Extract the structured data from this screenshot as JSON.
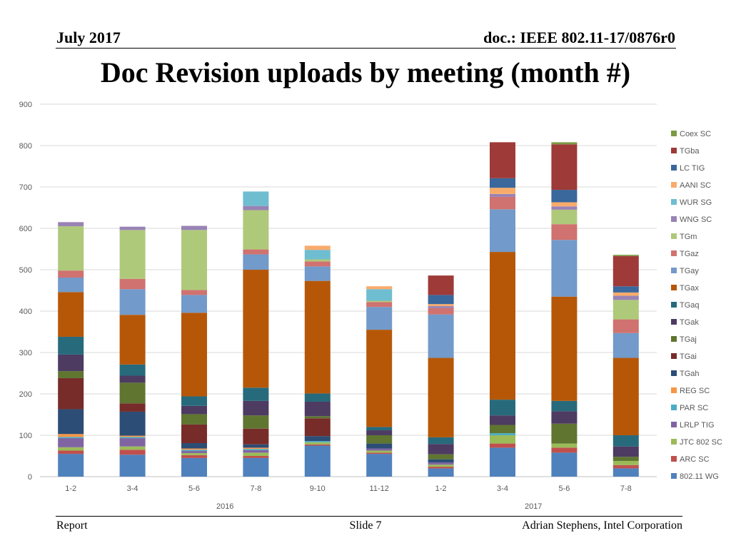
{
  "header": {
    "date": "July 2017",
    "doc_id": "doc.: IEEE 802.11-17/0876r0"
  },
  "slide_title": "Doc Revision uploads by meeting (month #)",
  "footer": {
    "left": "Report",
    "center": "Slide 7",
    "right": "Adrian Stephens, Intel Corporation"
  },
  "chart_data": {
    "type": "bar",
    "stacked": true,
    "title": "",
    "xlabel": "",
    "ylabel": "",
    "ylim": [
      0,
      900
    ],
    "yticks": [
      0,
      100,
      200,
      300,
      400,
      500,
      600,
      700,
      800,
      900
    ],
    "grid": true,
    "legend_position": "right",
    "categories": [
      "1-2",
      "3-4",
      "5-6",
      "7-8",
      "9-10",
      "11-12",
      "1-2",
      "3-4",
      "5-6",
      "7-8"
    ],
    "year_groups": [
      {
        "label": "2016",
        "start": 0,
        "end": 5
      },
      {
        "label": "2017",
        "start": 6,
        "end": 9
      }
    ],
    "series": [
      {
        "name": "802.11 WG",
        "color": "#4f81bd",
        "values": [
          55,
          53,
          45,
          45,
          75,
          55,
          20,
          70,
          58,
          20
        ]
      },
      {
        "name": "ARC SC",
        "color": "#c0504d",
        "values": [
          8,
          12,
          7,
          5,
          3,
          3,
          4,
          10,
          12,
          8
        ]
      },
      {
        "name": "JTC 802 SC",
        "color": "#9bbb59",
        "values": [
          8,
          8,
          5,
          8,
          5,
          5,
          5,
          20,
          10,
          10
        ]
      },
      {
        "name": "LRLP TIG",
        "color": "#8064a2",
        "values": [
          22,
          20,
          5,
          6,
          0,
          5,
          5,
          0,
          0,
          0
        ]
      },
      {
        "name": "PAR SC",
        "color": "#4bacc6",
        "values": [
          3,
          3,
          3,
          3,
          3,
          0,
          0,
          5,
          0,
          0
        ]
      },
      {
        "name": "REG SC",
        "color": "#f79646",
        "values": [
          7,
          3,
          3,
          3,
          0,
          0,
          0,
          0,
          0,
          0
        ]
      },
      {
        "name": "TGah",
        "color": "#2c4d75",
        "values": [
          60,
          58,
          13,
          8,
          12,
          12,
          8,
          0,
          0,
          0
        ]
      },
      {
        "name": "TGai",
        "color": "#772c2a",
        "values": [
          75,
          20,
          45,
          38,
          43,
          0,
          0,
          0,
          0,
          0
        ]
      },
      {
        "name": "TGaj",
        "color": "#5f7530",
        "values": [
          17,
          50,
          25,
          32,
          5,
          20,
          12,
          20,
          48,
          10
        ]
      },
      {
        "name": "TGak",
        "color": "#4d3b62",
        "values": [
          40,
          17,
          20,
          35,
          35,
          12,
          25,
          23,
          30,
          25
        ]
      },
      {
        "name": "TGaq",
        "color": "#276a7c",
        "values": [
          43,
          27,
          23,
          32,
          20,
          8,
          16,
          38,
          25,
          27
        ]
      },
      {
        "name": "TGax",
        "color": "#b65708",
        "values": [
          108,
          120,
          202,
          285,
          272,
          235,
          192,
          357,
          252,
          187
        ]
      },
      {
        "name": "TGay",
        "color": "#729aca",
        "values": [
          35,
          62,
          43,
          37,
          35,
          55,
          105,
          103,
          137,
          60
        ]
      },
      {
        "name": "TGaz",
        "color": "#d0726f",
        "values": [
          17,
          25,
          12,
          12,
          12,
          12,
          15,
          30,
          38,
          33
        ]
      },
      {
        "name": "TGm",
        "color": "#afc97a",
        "values": [
          107,
          118,
          145,
          95,
          5,
          3,
          0,
          0,
          35,
          47
        ]
      },
      {
        "name": "WNG SC",
        "color": "#9983b5",
        "values": [
          10,
          8,
          10,
          10,
          0,
          0,
          5,
          7,
          8,
          10
        ]
      },
      {
        "name": "WUR SG",
        "color": "#6fbdd1",
        "values": [
          0,
          0,
          0,
          35,
          23,
          28,
          0,
          0,
          0,
          0
        ]
      },
      {
        "name": "AANI SC",
        "color": "#f9ab6b",
        "values": [
          0,
          0,
          0,
          0,
          10,
          7,
          5,
          15,
          10,
          8
        ]
      },
      {
        "name": "LC TIG",
        "color": "#3a679c",
        "values": [
          0,
          0,
          0,
          0,
          0,
          0,
          22,
          23,
          30,
          15
        ]
      },
      {
        "name": "TGba",
        "color": "#9e3a38",
        "values": [
          0,
          0,
          0,
          0,
          0,
          0,
          47,
          87,
          110,
          73
        ]
      },
      {
        "name": "Coex SC",
        "color": "#7a9a43",
        "values": [
          0,
          0,
          0,
          0,
          0,
          0,
          0,
          0,
          5,
          3
        ]
      }
    ]
  }
}
